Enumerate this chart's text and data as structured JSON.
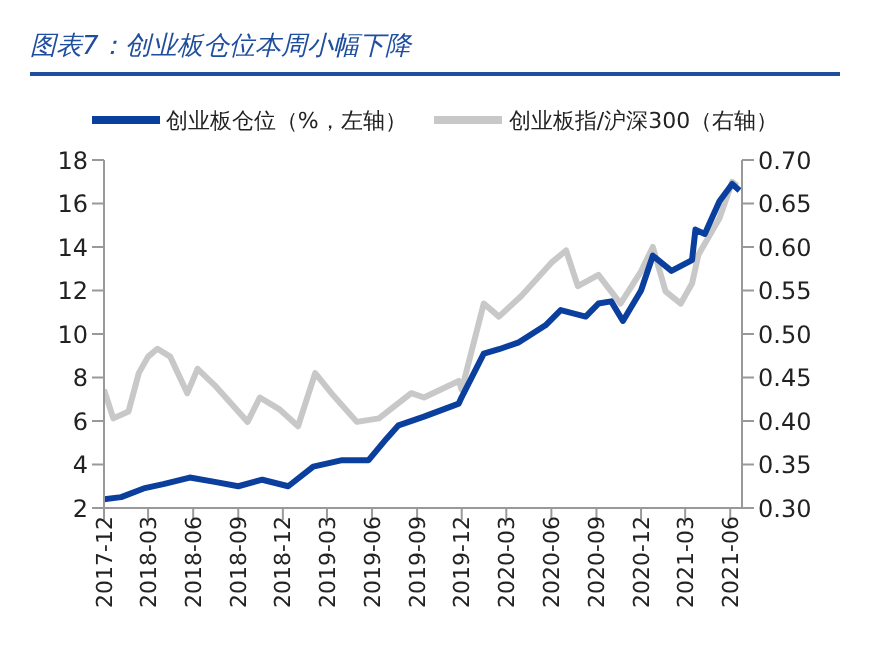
{
  "chart_data": {
    "type": "line",
    "title": "图表7：创业板仓位本周小幅下降",
    "legend": "top",
    "grid": false,
    "marker": "none",
    "line_style": "solid",
    "xlim": [
      "2017-12-01",
      "2021-06-25"
    ],
    "xticks": [
      {
        "value": "2017-12-01",
        "label": "2017-12"
      },
      {
        "value": "2018-03-01",
        "label": "2018-03"
      },
      {
        "value": "2018-06-01",
        "label": "2018-06"
      },
      {
        "value": "2018-09-01",
        "label": "2018-09"
      },
      {
        "value": "2018-12-01",
        "label": "2018-12"
      },
      {
        "value": "2019-03-01",
        "label": "2019-03"
      },
      {
        "value": "2019-06-01",
        "label": "2019-06"
      },
      {
        "value": "2019-09-01",
        "label": "2019-09"
      },
      {
        "value": "2019-12-01",
        "label": "2019-12"
      },
      {
        "value": "2020-03-01",
        "label": "2020-03"
      },
      {
        "value": "2020-06-01",
        "label": "2020-06"
      },
      {
        "value": "2020-09-01",
        "label": "2020-09"
      },
      {
        "value": "2020-12-01",
        "label": "2020-12"
      },
      {
        "value": "2021-03-01",
        "label": "2021-03"
      },
      {
        "value": "2021-06-01",
        "label": "2021-06"
      }
    ],
    "ylim": [
      2,
      18
    ],
    "yticks": [
      2,
      4,
      6,
      8,
      10,
      12,
      14,
      16,
      18
    ],
    "y2lim": [
      0.3,
      0.7
    ],
    "y2ticks": [
      {
        "value": 0.3,
        "label": "0.30"
      },
      {
        "value": 0.35,
        "label": "0.35"
      },
      {
        "value": 0.4,
        "label": "0.40"
      },
      {
        "value": 0.45,
        "label": "0.45"
      },
      {
        "value": 0.5,
        "label": "0.50"
      },
      {
        "value": 0.55,
        "label": "0.55"
      },
      {
        "value": 0.6,
        "label": "0.60"
      },
      {
        "value": 0.65,
        "label": "0.65"
      },
      {
        "value": 0.7,
        "label": "0.70"
      }
    ],
    "series": [
      {
        "name": "创业板仓位（%，左轴）",
        "color": "#0b3f9e",
        "x": [
          "2017-12-01",
          "2018-01-05",
          "2018-02-20",
          "2018-04-01",
          "2018-05-25",
          "2018-07-15",
          "2018-09-01",
          "2018-10-20",
          "2018-12-12",
          "2019-02-01",
          "2019-04-01",
          "2019-05-25",
          "2019-07-01",
          "2019-07-25",
          "2019-09-15",
          "2019-11-25",
          "2019-12-01",
          "2020-01-15",
          "2020-02-15",
          "2020-03-25",
          "2020-05-20",
          "2020-06-20",
          "2020-08-10",
          "2020-09-05",
          "2020-10-01",
          "2020-10-25",
          "2020-12-01",
          "2020-12-25",
          "2021-02-01",
          "2021-03-15",
          "2021-03-22",
          "2021-04-10",
          "2021-05-10",
          "2021-06-05",
          "2021-06-20"
        ],
        "values": [
          2.4,
          2.5,
          2.9,
          3.1,
          3.4,
          3.2,
          3.0,
          3.3,
          3.0,
          3.9,
          4.2,
          4.2,
          5.2,
          5.8,
          6.2,
          6.8,
          7.1,
          9.1,
          9.3,
          9.6,
          10.4,
          11.1,
          10.8,
          11.4,
          11.5,
          10.6,
          12.0,
          13.6,
          12.9,
          13.4,
          14.8,
          14.6,
          16.1,
          16.9,
          16.6
        ]
      },
      {
        "name": "创业板指/沪深300（右轴）",
        "color": "#c8c8c8",
        "axis": "y2",
        "x": [
          "2017-12-01",
          "2017-12-20",
          "2018-01-20",
          "2018-02-10",
          "2018-03-01",
          "2018-03-20",
          "2018-04-15",
          "2018-05-20",
          "2018-06-10",
          "2018-07-15",
          "2018-09-20",
          "2018-10-15",
          "2018-11-25",
          "2019-01-01",
          "2019-02-05",
          "2019-03-10",
          "2019-05-01",
          "2019-06-15",
          "2019-08-20",
          "2019-09-15",
          "2019-11-25",
          "2019-12-01",
          "2020-01-15",
          "2020-02-15",
          "2020-04-01",
          "2020-06-01",
          "2020-07-01",
          "2020-07-25",
          "2020-09-05",
          "2020-10-20",
          "2020-12-01",
          "2020-12-25",
          "2021-01-20",
          "2021-02-20",
          "2021-03-15",
          "2021-03-28",
          "2021-05-10",
          "2021-06-05",
          "2021-06-15"
        ],
        "values": [
          0.436,
          0.403,
          0.411,
          0.455,
          0.474,
          0.483,
          0.474,
          0.432,
          0.46,
          0.441,
          0.399,
          0.427,
          0.413,
          0.394,
          0.455,
          0.432,
          0.399,
          0.403,
          0.432,
          0.427,
          0.446,
          0.436,
          0.535,
          0.52,
          0.544,
          0.582,
          0.596,
          0.555,
          0.568,
          0.535,
          0.572,
          0.6,
          0.549,
          0.535,
          0.558,
          0.591,
          0.633,
          0.675,
          0.67
        ]
      }
    ]
  }
}
